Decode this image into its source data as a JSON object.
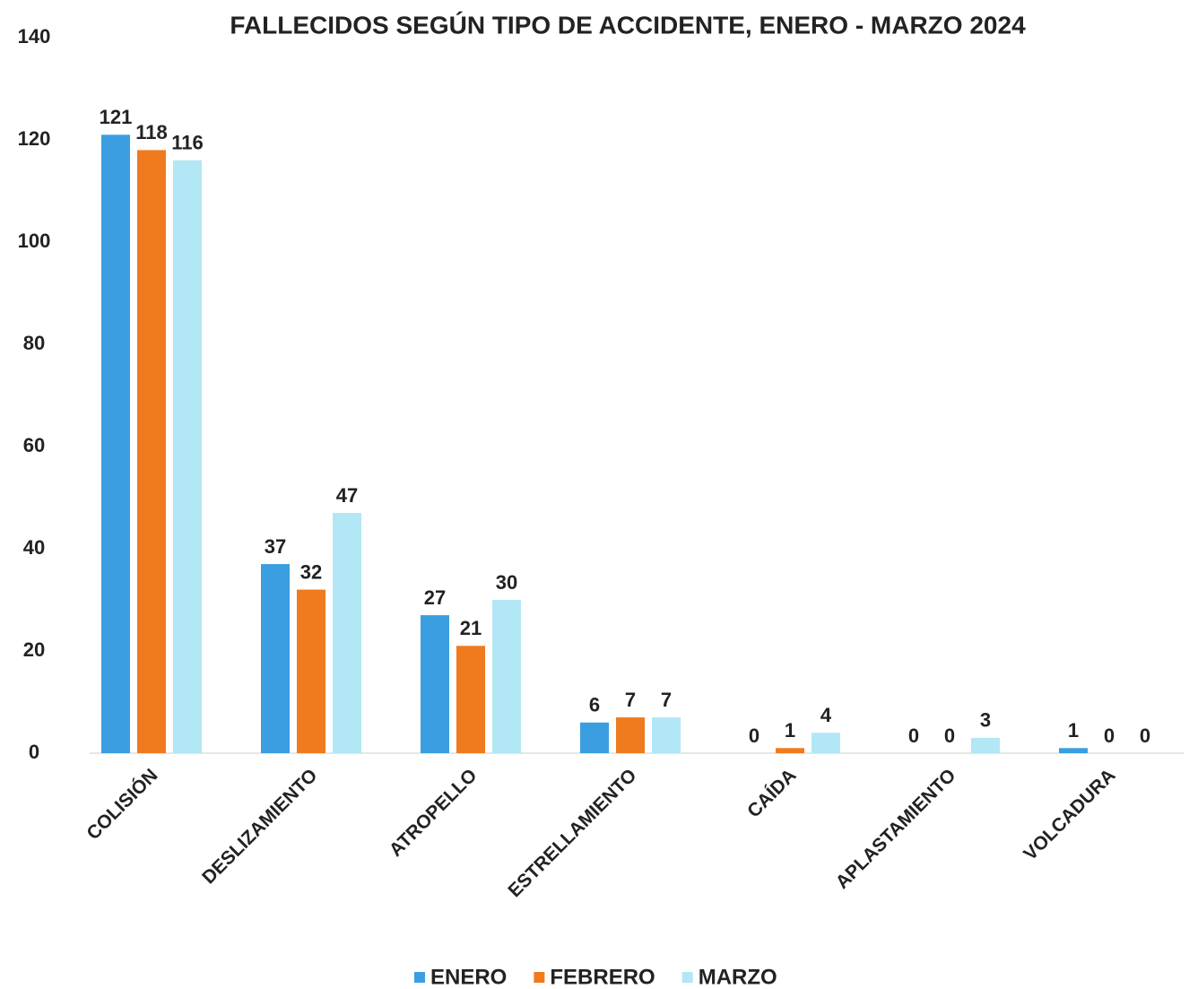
{
  "chart_data": {
    "type": "bar",
    "title": "FALLECIDOS SEGÚN TIPO DE ACCIDENTE, ENERO - MARZO 2024",
    "categories": [
      "COLISIÓN",
      "DESLIZAMIENTO",
      "ATROPELLO",
      "ESTRELLAMIENTO",
      "CAÍDA",
      "APLASTAMIENTO",
      "VOLCADURA"
    ],
    "series": [
      {
        "name": "ENERO",
        "color": "#3a9ee0",
        "values": [
          121,
          37,
          27,
          6,
          0,
          0,
          1
        ]
      },
      {
        "name": "FEBRERO",
        "color": "#f07a1e",
        "values": [
          118,
          32,
          21,
          7,
          1,
          0,
          0
        ]
      },
      {
        "name": "MARZO",
        "color": "#b2e7f6",
        "values": [
          116,
          47,
          30,
          7,
          4,
          3,
          0
        ]
      }
    ],
    "ylim": [
      0,
      140
    ],
    "yticks": [
      0,
      20,
      40,
      60,
      80,
      100,
      120,
      140
    ],
    "grid": false,
    "legend": "bottom"
  }
}
